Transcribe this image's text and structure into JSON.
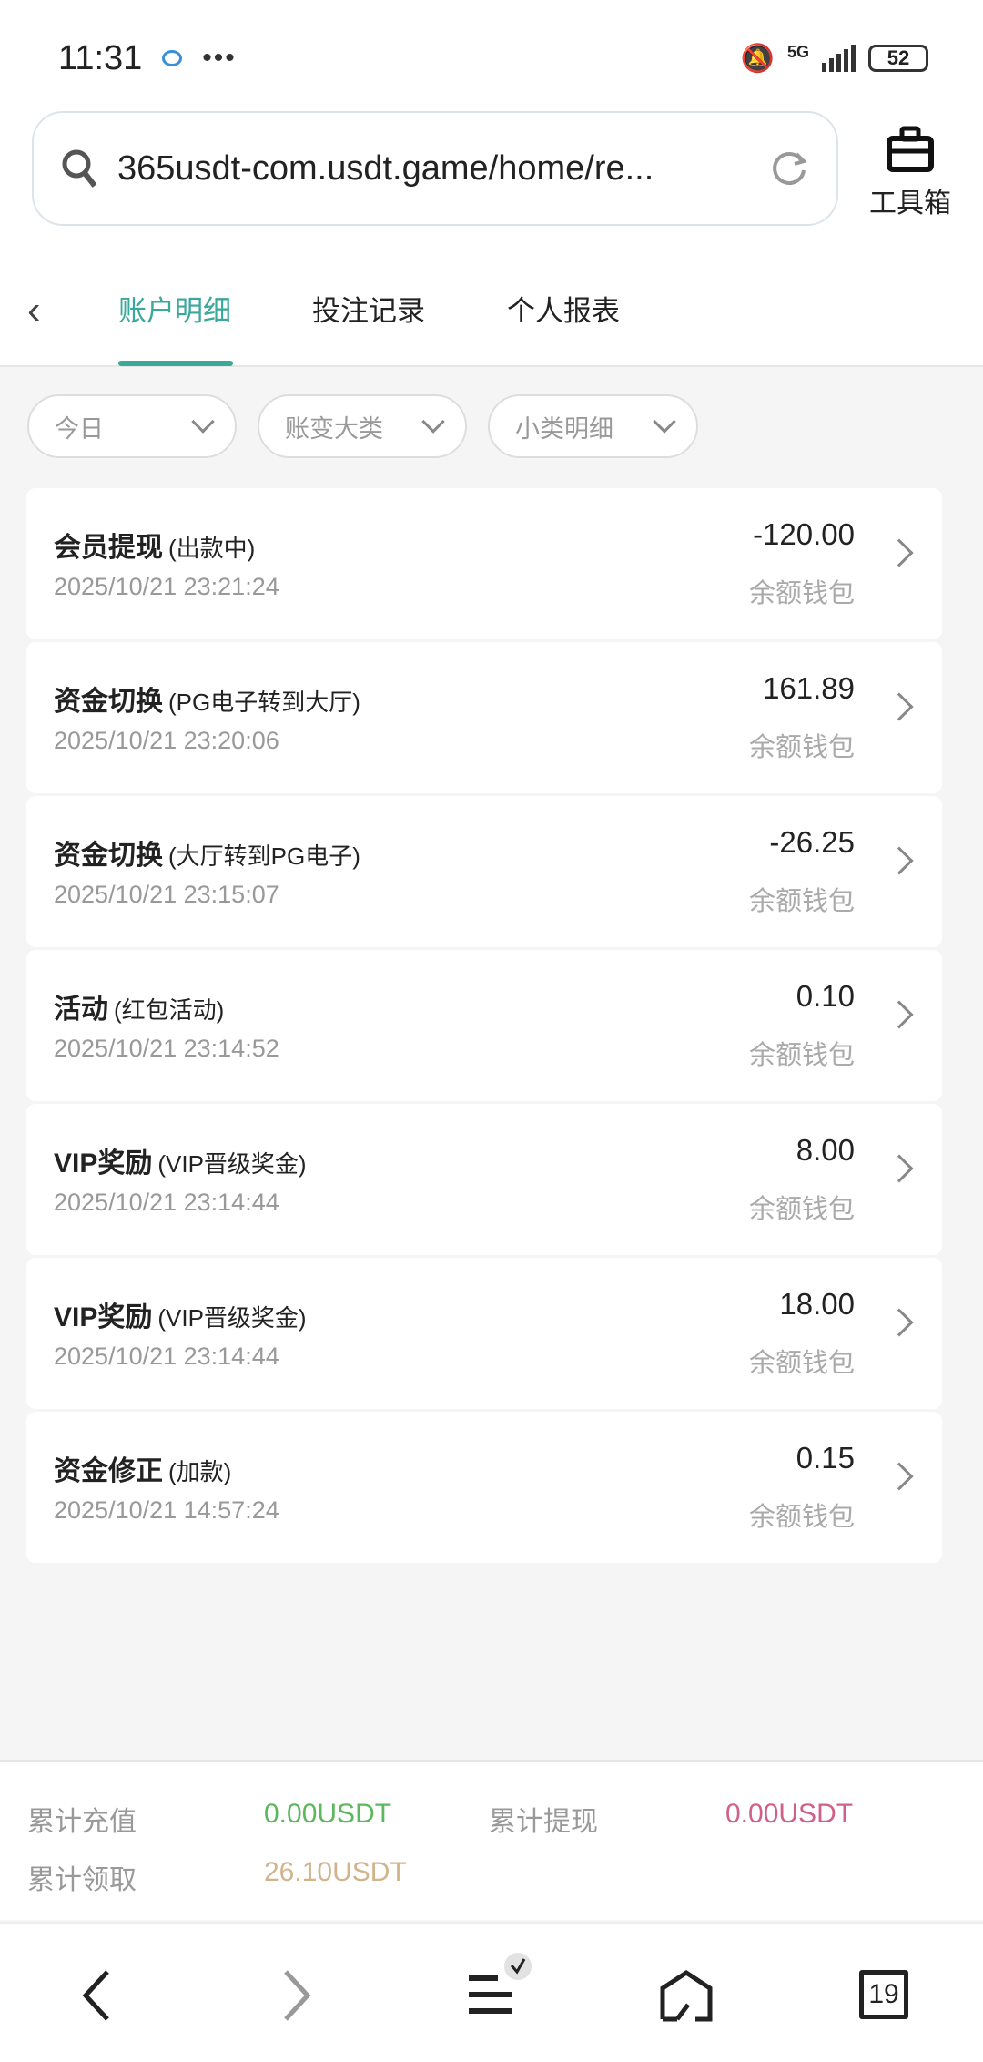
{
  "status": {
    "time": "11:31",
    "network": "5G",
    "battery": "52"
  },
  "browser": {
    "url": "365usdt-com.usdt.game/home/re...",
    "toolbox_label": "工具箱"
  },
  "tabs": [
    {
      "label": "账户明细",
      "active": true
    },
    {
      "label": "投注记录"
    },
    {
      "label": "个人报表"
    }
  ],
  "filters": [
    {
      "label": "今日"
    },
    {
      "label": "账变大类"
    },
    {
      "label": "小类明细"
    }
  ],
  "records": [
    {
      "title": "会员提现",
      "sub": "(出款中)",
      "date": "2025/10/21 23:21:24",
      "amount": "-120.00",
      "wallet": "余额钱包"
    },
    {
      "title": "资金切换",
      "sub": "(PG电子转到大厅)",
      "date": "2025/10/21 23:20:06",
      "amount": "161.89",
      "wallet": "余额钱包"
    },
    {
      "title": "资金切换",
      "sub": "(大厅转到PG电子)",
      "date": "2025/10/21 23:15:07",
      "amount": "-26.25",
      "wallet": "余额钱包"
    },
    {
      "title": "活动",
      "sub": "(红包活动)",
      "date": "2025/10/21 23:14:52",
      "amount": "0.10",
      "wallet": "余额钱包"
    },
    {
      "title": "VIP奖励",
      "sub": "(VIP晋级奖金)",
      "date": "2025/10/21 23:14:44",
      "amount": "8.00",
      "wallet": "余额钱包"
    },
    {
      "title": "VIP奖励",
      "sub": "(VIP晋级奖金)",
      "date": "2025/10/21 23:14:44",
      "amount": "18.00",
      "wallet": "余额钱包"
    },
    {
      "title": "资金修正",
      "sub": "(加款)",
      "date": "2025/10/21 14:57:24",
      "amount": "0.15",
      "wallet": "余额钱包"
    }
  ],
  "summary": {
    "deposit_label": "累计充值",
    "deposit_value": "0.00USDT",
    "deposit_color": "#5cb85c",
    "withdraw_label": "累计提现",
    "withdraw_value": "0.00USDT",
    "withdraw_color": "#d0608a",
    "claim_label": "累计领取",
    "claim_value": "26.10USDT",
    "claim_color": "#d2b48c"
  },
  "bottom_nav": {
    "tabs_count": "19"
  },
  "colors": {
    "accent": "#3aa89a"
  }
}
